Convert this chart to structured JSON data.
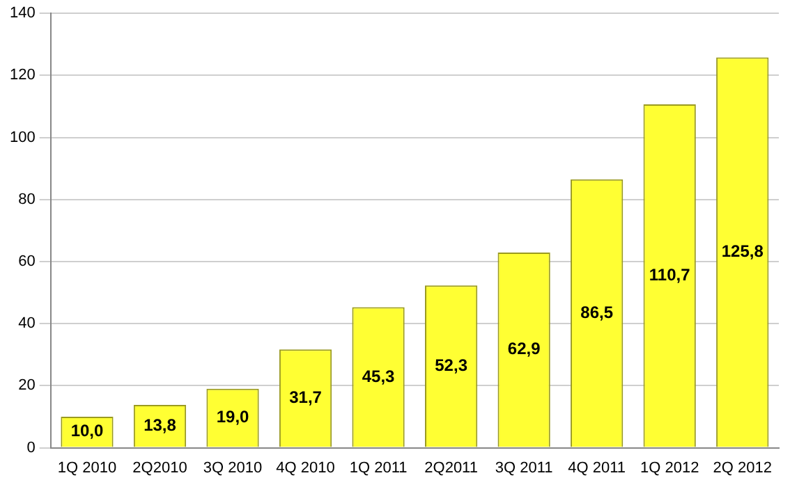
{
  "chart_data": {
    "type": "bar",
    "categories": [
      "1Q 2010",
      "2Q2010",
      "3Q 2010",
      "4Q 2010",
      "1Q 2011",
      "2Q2011",
      "3Q 2011",
      "4Q 2011",
      "1Q 2012",
      "2Q 2012"
    ],
    "values": [
      10.0,
      13.8,
      19.0,
      31.7,
      45.3,
      52.3,
      62.9,
      86.5,
      110.7,
      125.8
    ],
    "value_labels": [
      "10,0",
      "13,8",
      "19,0",
      "31,7",
      "45,3",
      "52,3",
      "62,9",
      "86,5",
      "110,7",
      "125,8"
    ],
    "color": "#ffff33",
    "ylim": [
      0,
      140
    ],
    "yticks": [
      0,
      20,
      40,
      60,
      80,
      100,
      120,
      140
    ],
    "grid": "y",
    "legend": false
  }
}
